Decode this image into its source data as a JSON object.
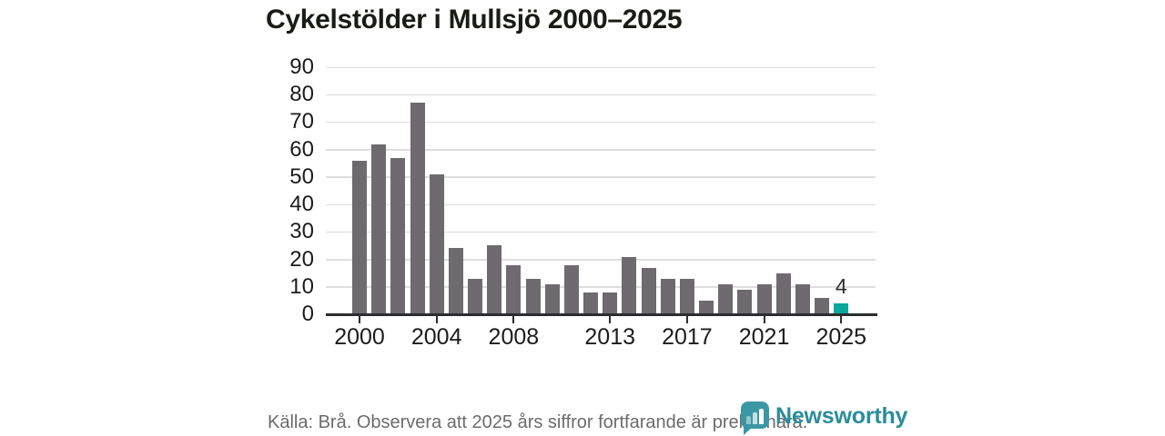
{
  "title": "Cykelstölder i Mullsjö 2000–2025",
  "chart_data": {
    "type": "bar",
    "title": "Cykelstölder i Mullsjö 2000–2025",
    "categories": [
      "2000",
      "2001",
      "2002",
      "2003",
      "2004",
      "2005",
      "2006",
      "2007",
      "2008",
      "2009",
      "2010",
      "2011",
      "2012",
      "2013",
      "2014",
      "2015",
      "2016",
      "2017",
      "2018",
      "2019",
      "2020",
      "2021",
      "2022",
      "2023",
      "2024",
      "2025"
    ],
    "values": [
      56,
      62,
      57,
      77,
      51,
      24,
      13,
      25,
      18,
      13,
      11,
      18,
      8,
      8,
      21,
      17,
      13,
      13,
      5,
      11,
      9,
      11,
      15,
      11,
      6,
      4
    ],
    "xlabel": "",
    "ylabel": "",
    "ylim": [
      0,
      90
    ],
    "ytick_step": 10,
    "xticks_shown": [
      "2000",
      "2004",
      "2008",
      "2013",
      "2017",
      "2021",
      "2025"
    ],
    "grid": true,
    "legend": "none",
    "bar_color": "#6e6a70",
    "highlight_category": "2025",
    "highlight_color": "#0ba79a",
    "annotation": {
      "category": "2025",
      "text": "4"
    }
  },
  "footer": {
    "source_note": "Källa: Brå. Observera att 2025 års siffror fortfarande är preliminära."
  },
  "logo": {
    "text": "Newsworthy",
    "icon": "newsworthy-speech-bubble-bar-chart-icon",
    "icon_color": "#3a98a5",
    "text_color": "#2b8d99"
  }
}
